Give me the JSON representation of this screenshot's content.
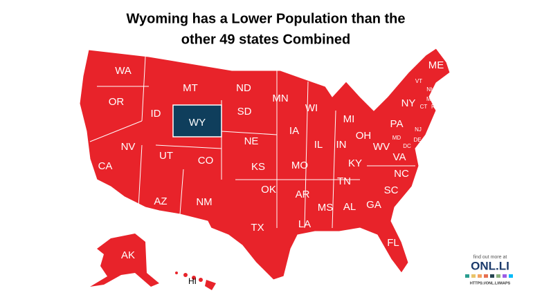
{
  "title_lines": [
    "Wyoming has a Lower Population than the",
    "other 49 states Combined"
  ],
  "states": [
    "WA",
    "MT",
    "ND",
    "MN",
    "ME",
    "OR",
    "ID",
    "WY",
    "SD",
    "WI",
    "MI",
    "NY",
    "VT",
    "NH",
    "MA",
    "CT",
    "RI",
    "PA",
    "NJ",
    "MD",
    "DE",
    "DC",
    "NV",
    "UT",
    "CO",
    "NE",
    "IA",
    "IL",
    "IN",
    "OH",
    "WV",
    "VA",
    "KY",
    "CA",
    "KS",
    "MO",
    "NC",
    "TN",
    "AZ",
    "NM",
    "OK",
    "AR",
    "SC",
    "MS",
    "AL",
    "GA",
    "TX",
    "LA",
    "FL",
    "AK",
    "HI"
  ],
  "logo": {
    "tagline": "find out more at",
    "brand": "ONL.LI",
    "url": "HTTPS://ONL.LI/MAPS"
  }
}
